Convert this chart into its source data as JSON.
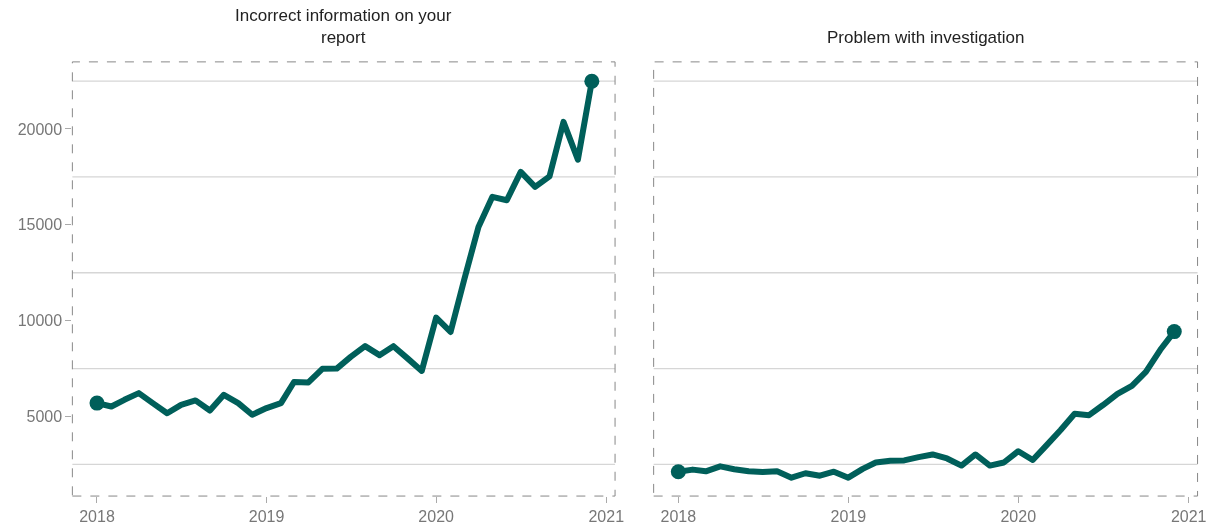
{
  "chart_data": [
    {
      "type": "line",
      "title": "Incorrect information on your\nreport",
      "x": [
        "2018-01",
        "2018-02",
        "2018-03",
        "2018-04",
        "2018-05",
        "2018-06",
        "2018-07",
        "2018-08",
        "2018-09",
        "2018-10",
        "2018-11",
        "2018-12",
        "2019-01",
        "2019-02",
        "2019-03",
        "2019-04",
        "2019-05",
        "2019-06",
        "2019-07",
        "2019-08",
        "2019-09",
        "2019-10",
        "2019-11",
        "2019-12",
        "2020-01",
        "2020-02",
        "2020-03",
        "2020-04",
        "2020-05",
        "2020-06",
        "2020-07",
        "2020-08",
        "2020-09",
        "2020-10",
        "2020-11",
        "2020-12"
      ],
      "series": [
        {
          "color": "#005f5a",
          "values": [
            5700,
            5520,
            5870,
            6220,
            5700,
            5170,
            5610,
            5840,
            5310,
            6130,
            5700,
            5090,
            5440,
            5700,
            6800,
            6780,
            7490,
            7500,
            8110,
            8670,
            8200,
            8670,
            8020,
            7380,
            10160,
            9410,
            12110,
            14890,
            16460,
            16280,
            17760,
            16980,
            17530,
            20370,
            18400,
            22490
          ]
        }
      ],
      "xlim": [
        "2017-11-09",
        "2021-01-20"
      ],
      "xticks": [
        {
          "value": "2018-01-01",
          "label": "2018"
        },
        {
          "value": "2019-01-01",
          "label": "2019"
        },
        {
          "value": "2020-01-01",
          "label": "2020"
        },
        {
          "value": "2021-01-01",
          "label": "2021"
        }
      ],
      "ylim": [
        850,
        23500
      ],
      "yticks": [
        {
          "value": 2500,
          "label": null
        },
        5000,
        {
          "value": 7500,
          "label": null
        },
        10000,
        {
          "value": 12500,
          "label": null
        },
        15000,
        {
          "value": 17500,
          "label": null
        },
        20000,
        {
          "value": 22500,
          "label": null
        }
      ],
      "grid": "y",
      "line_style": "solid"
    },
    {
      "type": "line",
      "title": "Problem with investigation",
      "x": [
        "2018-01",
        "2018-02",
        "2018-03",
        "2018-04",
        "2018-05",
        "2018-06",
        "2018-07",
        "2018-08",
        "2018-09",
        "2018-10",
        "2018-11",
        "2018-12",
        "2019-01",
        "2019-02",
        "2019-03",
        "2019-04",
        "2019-05",
        "2019-06",
        "2019-07",
        "2019-08",
        "2019-09",
        "2019-10",
        "2019-11",
        "2019-12",
        "2020-01",
        "2020-02",
        "2020-03",
        "2020-04",
        "2020-05",
        "2020-06",
        "2020-07",
        "2020-08",
        "2020-09",
        "2020-10",
        "2020-11",
        "2020-12"
      ],
      "series": [
        {
          "color": "#005f5a",
          "values": [
            2120,
            2230,
            2140,
            2400,
            2250,
            2140,
            2100,
            2140,
            1810,
            2040,
            1910,
            2120,
            1810,
            2270,
            2600,
            2690,
            2710,
            2880,
            3020,
            2810,
            2440,
            3020,
            2440,
            2600,
            3190,
            2730,
            3480,
            4300,
            5140,
            5070,
            5600,
            6180,
            6600,
            7330,
            8480,
            9430
          ]
        }
      ],
      "xlim": [
        "2017-11-09",
        "2021-01-20"
      ],
      "xticks": [
        {
          "value": "2018-01-01",
          "label": "2018"
        },
        {
          "value": "2019-01-01",
          "label": "2019"
        },
        {
          "value": "2020-01-01",
          "label": "2020"
        },
        {
          "value": "2021-01-01",
          "label": "2021"
        }
      ],
      "ylim": [
        850,
        23500
      ],
      "yticks": [
        {
          "value": 2500,
          "label": null
        },
        5000,
        {
          "value": 7500,
          "label": null
        },
        10000,
        {
          "value": 12500,
          "label": null
        },
        15000,
        {
          "value": 17500,
          "label": null
        },
        20000,
        {
          "value": 22500,
          "label": null
        }
      ],
      "grid": "y",
      "line_style": "solid",
      "tick_labels": "x"
    }
  ]
}
